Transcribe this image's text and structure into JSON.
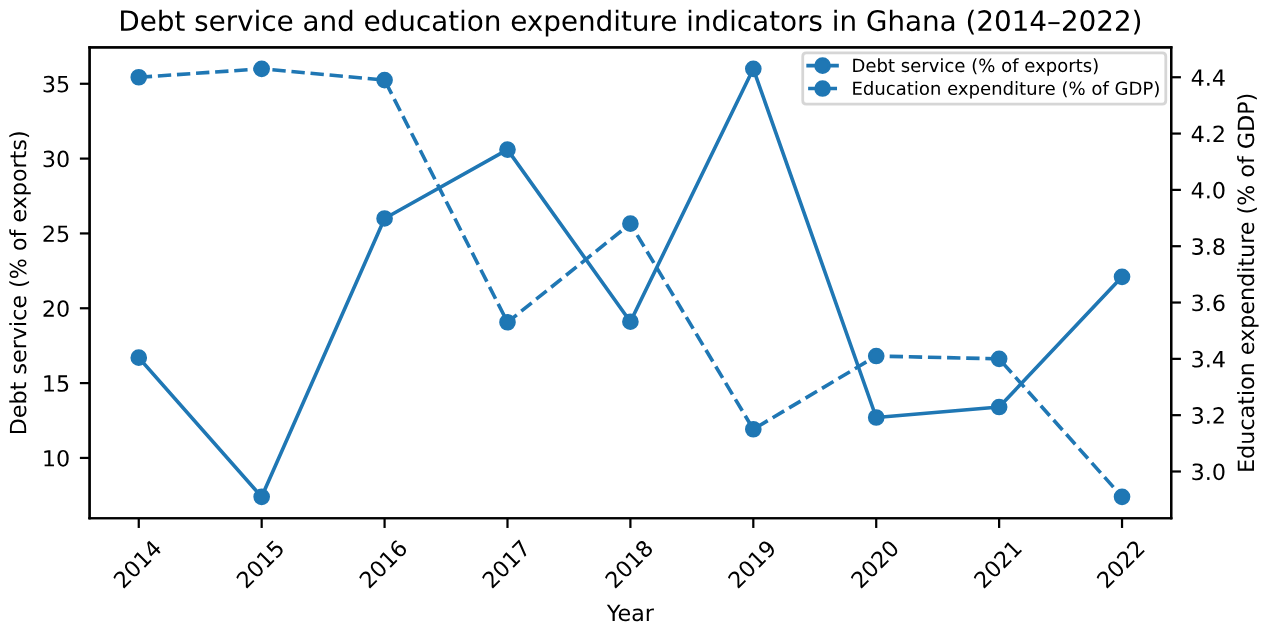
{
  "chart_data": {
    "type": "line",
    "title": "Debt service and education expenditure indicators in Ghana (2014–2022)",
    "xlabel": "Year",
    "ylabel": "Debt service (% of exports)",
    "y2label": "Education expenditure (% of GDP)",
    "categories": [
      "2014",
      "2015",
      "2016",
      "2017",
      "2018",
      "2019",
      "2020",
      "2021",
      "2022"
    ],
    "series": [
      {
        "name": "Debt service (% of exports)",
        "color": "#1f77b4",
        "line_style": "solid",
        "values": [
          16.7,
          7.4,
          26.0,
          30.6,
          19.1,
          36.0,
          12.7,
          13.4,
          22.1
        ]
      },
      {
        "name": "Education expenditure (% of GDP)",
        "color": "#1f77b4",
        "line_style": "dashed",
        "axis": "y2",
        "values": [
          4.4,
          4.43,
          4.39,
          3.53,
          3.88,
          3.15,
          3.41,
          3.4,
          2.91
        ]
      }
    ],
    "ylim": [
      5.97,
      37.43
    ],
    "yticks": [
      10,
      15,
      20,
      25,
      30,
      35
    ],
    "y2lim": [
      2.834,
      4.506
    ],
    "y2ticks": [
      {
        "value": 3.0,
        "label": "3.0"
      },
      {
        "value": 3.2,
        "label": "3.2"
      },
      {
        "value": 3.4,
        "label": "3.4"
      },
      {
        "value": 3.6,
        "label": "3.6"
      },
      {
        "value": 3.8,
        "label": "3.8"
      },
      {
        "value": 4.0,
        "label": "4.0"
      },
      {
        "value": 4.2,
        "label": "4.2"
      },
      {
        "value": 4.4,
        "label": "4.4"
      }
    ],
    "marker": "circle",
    "grid": false,
    "legend": "top right"
  }
}
